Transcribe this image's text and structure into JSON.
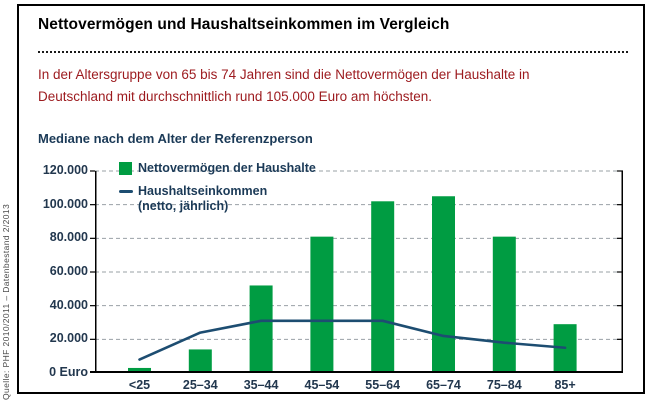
{
  "title": "Nettovermögen und Haushaltseinkommen im Vergleich",
  "subtitle": "In der Altersgruppe von 65 bis 74 Jahren sind die Nettovermögen der Haushalte in Deutschland mit durchschnittlich rund 105.000 Euro am höchsten.",
  "source": "Quelle: PHF 2010/2011 – Datenbestand 2/2013",
  "legend": {
    "bar_label": "Nettovermögen der Haushalte",
    "line_label_1": "Haushaltseinkommen",
    "line_label_2": "(netto, jährlich)"
  },
  "colors": {
    "bar_green": "#009C42",
    "line_navy": "#1D4D71",
    "subtitle_red": "#9C1A1E",
    "chart_text": "#22374E",
    "grid_gray": "#9AA0A6",
    "axis_black": "#000000"
  },
  "chart_data": {
    "type": "bar+line",
    "title": "Mediane nach dem Alter der Referenzperson",
    "categories": [
      "<25",
      "25–34",
      "35–44",
      "45–54",
      "55–64",
      "65–74",
      "75–84",
      "85+"
    ],
    "series": [
      {
        "name": "Nettovermögen der Haushalte",
        "type": "bar",
        "color": "#009C42",
        "values": [
          3000,
          14000,
          52000,
          81000,
          102000,
          105000,
          81000,
          29000
        ]
      },
      {
        "name": "Haushaltseinkommen (netto, jährlich)",
        "type": "line",
        "color": "#1D4D71",
        "values": [
          8000,
          24000,
          31000,
          31000,
          31000,
          22000,
          18000,
          15000
        ]
      }
    ],
    "ylim": [
      0,
      120000
    ],
    "ytick_step": 20000,
    "ytick_labels_bottom_up": [
      "0 Euro",
      "20.000",
      "40.000",
      "60.000",
      "80.000",
      "100.000",
      "120.000"
    ],
    "grid": "dashed-horizontal",
    "legend_position": "top-left-inside",
    "unit": "Euro"
  }
}
